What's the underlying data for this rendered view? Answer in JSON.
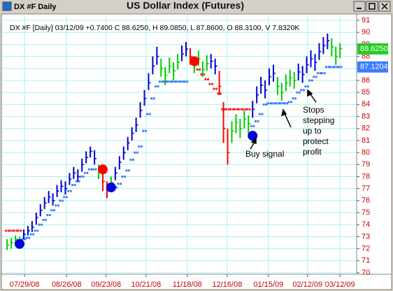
{
  "chart_data": {
    "type": "ohlc",
    "title": "US Dollar Index (Futures)",
    "window_label": "DX #F Daily",
    "info": "DX #F [Daily] 03/12/09 +0.7400 C 88.6250, H 89.0850, L 87.8600, O 88.3100, V 7.8320K",
    "xlim": [
      -1.2,
      84
    ],
    "ylim": [
      69.88,
      91.41
    ],
    "yticks": [
      70,
      71,
      72,
      73,
      74,
      75,
      76,
      77,
      78,
      79,
      80,
      81,
      82,
      83,
      84,
      85,
      86,
      87,
      88,
      89,
      90,
      91
    ],
    "xticks": [
      {
        "value": 4.2,
        "label": "07/29/08"
      },
      {
        "value": 14.3,
        "label": "08/26/08"
      },
      {
        "value": 23.8,
        "label": "09/23/08"
      },
      {
        "value": 33.4,
        "label": "10/21/08"
      },
      {
        "value": 43.3,
        "label": "11/18/08"
      },
      {
        "value": 52.9,
        "label": "12/16/08"
      },
      {
        "value": 62.8,
        "label": "01/15/09"
      },
      {
        "value": 72.2,
        "label": "02/12/09"
      },
      {
        "value": 80,
        "label": "03/12/09"
      }
    ],
    "grid": true,
    "high": [
      72.8,
      72.9,
      73.1,
      73.0,
      73.6,
      73.9,
      74.3,
      75.0,
      75.7,
      76.3,
      76.8,
      76.6,
      77.3,
      77.7,
      77.6,
      78.3,
      78.8,
      78.6,
      79.5,
      80.1,
      80.5,
      80.2,
      79.0,
      78.2,
      77.6,
      78.0,
      78.8,
      79.7,
      80.5,
      81.3,
      82.1,
      82.9,
      84.2,
      85.2,
      86.6,
      88.0,
      88.8,
      87.8,
      87.1,
      87.9,
      87.5,
      88.2,
      88.9,
      89.2,
      88.7,
      87.9,
      88.5,
      87.6,
      88.1,
      88.2,
      87.8,
      86.8,
      84.2,
      82.0,
      82.6,
      83.2,
      82.8,
      83.5,
      83.1,
      84.3,
      85.5,
      86.3,
      86.0,
      87.0,
      87.3,
      86.3,
      85.8,
      86.5,
      86.9,
      86.7,
      87.4,
      87.2,
      88.0,
      88.5,
      88.2,
      89.1,
      89.6,
      89.9,
      89.5,
      88.8,
      89.085
    ],
    "low": [
      71.9,
      72.0,
      72.3,
      72.1,
      72.8,
      73.1,
      73.4,
      74.0,
      74.7,
      75.3,
      75.8,
      75.6,
      76.3,
      76.7,
      76.5,
      77.3,
      77.8,
      77.6,
      78.4,
      79.1,
      79.6,
      79.0,
      77.8,
      76.8,
      76.2,
      76.9,
      77.7,
      78.6,
      79.4,
      80.2,
      81.0,
      81.7,
      82.9,
      83.9,
      85.2,
      86.5,
      87.3,
      86.3,
      85.6,
      86.6,
      86.0,
      86.9,
      87.6,
      88.0,
      87.3,
      86.6,
      87.2,
      86.3,
      86.8,
      87.0,
      86.5,
      84.8,
      80.8,
      79.0,
      80.8,
      81.6,
      81.2,
      82.0,
      81.6,
      82.9,
      84.1,
      84.9,
      84.5,
      85.6,
      85.9,
      84.8,
      84.3,
      85.1,
      85.5,
      85.3,
      86.0,
      85.8,
      86.6,
      87.1,
      86.8,
      87.7,
      88.2,
      88.6,
      88.0,
      87.3,
      87.86
    ],
    "close": [
      72.3,
      72.5,
      72.8,
      72.6,
      73.2,
      73.5,
      73.8,
      74.6,
      75.2,
      75.8,
      76.3,
      76.0,
      76.8,
      77.2,
      77.0,
      77.8,
      78.3,
      78.0,
      79.0,
      79.6,
      80.1,
      79.5,
      78.4,
      77.6,
      76.8,
      77.5,
      78.3,
      79.2,
      80.0,
      80.8,
      81.6,
      82.3,
      83.5,
      84.5,
      85.8,
      87.2,
      88.0,
      87.0,
      86.4,
      87.2,
      86.8,
      87.5,
      88.2,
      88.6,
      88.0,
      87.2,
      87.8,
      86.9,
      87.4,
      87.6,
      87.2,
      85.5,
      82.0,
      80.0,
      81.8,
      82.5,
      82.0,
      82.8,
      82.4,
      83.6,
      84.8,
      85.6,
      85.2,
      86.3,
      86.6,
      85.5,
      85.0,
      85.8,
      86.2,
      86.0,
      86.7,
      86.5,
      87.3,
      87.8,
      87.5,
      88.4,
      88.9,
      89.3,
      88.8,
      88.0,
      88.625
    ],
    "bar_colors": [
      "#00cc00",
      "#00cc00",
      "#00cc00",
      "#00cc00",
      "#0000cc",
      "#0000cc",
      "#0000cc",
      "#0000cc",
      "#0000cc",
      "#0000cc",
      "#0000cc",
      "#0000cc",
      "#0000cc",
      "#0000cc",
      "#0000cc",
      "#0000cc",
      "#0000cc",
      "#0000cc",
      "#0000cc",
      "#0000cc",
      "#0000cc",
      "#0000cc",
      "#00cc00",
      "#ff0000",
      "#ff0000",
      "#00cc00",
      "#0000cc",
      "#0000cc",
      "#0000cc",
      "#0000cc",
      "#0000cc",
      "#0000cc",
      "#0000cc",
      "#0000cc",
      "#0000cc",
      "#0000cc",
      "#0000cc",
      "#00cc00",
      "#00cc00",
      "#00cc00",
      "#00cc00",
      "#00cc00",
      "#0000cc",
      "#0000cc",
      "#ff0000",
      "#00cc00",
      "#00cc00",
      "#00cc00",
      "#00cc00",
      "#0000cc",
      "#0000cc",
      "#ff0000",
      "#ff0000",
      "#ff0000",
      "#00cc00",
      "#00cc00",
      "#00cc00",
      "#00cc00",
      "#00cc00",
      "#0000cc",
      "#0000cc",
      "#0000cc",
      "#0000cc",
      "#0000cc",
      "#0000cc",
      "#00cc00",
      "#00cc00",
      "#00cc00",
      "#00cc00",
      "#00cc00",
      "#0000cc",
      "#0000cc",
      "#0000cc",
      "#0000cc",
      "#0000cc",
      "#0000cc",
      "#0000cc",
      "#0000cc",
      "#00cc00",
      "#00cc00",
      "#00cc00"
    ],
    "stops": [
      {
        "color": "#3c7cff",
        "values": [
          null,
          null,
          null,
          null,
          72.8,
          72.9,
          73.2,
          73.5,
          74.0,
          74.4,
          74.8,
          75.2,
          75.6,
          76.0,
          76.3,
          76.8,
          77.3,
          77.6,
          78.0,
          78.3,
          78.6,
          78.6,
          null,
          null,
          null,
          null,
          77.1,
          77.4,
          78.0,
          78.5,
          79.4,
          80.0,
          80.5,
          81.8,
          83.2,
          84.5,
          85.5,
          85.9,
          85.9,
          85.9,
          85.9,
          85.9,
          85.9,
          85.9,
          null,
          null,
          null,
          null,
          null,
          null,
          null,
          null,
          null,
          null,
          null,
          null,
          null,
          null,
          null,
          82.2,
          82.6,
          83.2,
          84.0,
          84.1,
          84.1,
          84.1,
          84.1,
          84.1,
          84.2,
          84.5,
          85.0,
          85.2,
          85.5,
          86.0,
          86.3,
          86.6,
          86.6,
          87.1204,
          87.1204,
          87.1204,
          87.1204
        ]
      },
      {
        "color": "#ff2020",
        "values": [
          73.5,
          73.5,
          73.5,
          73.5,
          null,
          null,
          null,
          null,
          null,
          null,
          null,
          null,
          null,
          null,
          null,
          null,
          null,
          null,
          null,
          null,
          null,
          null,
          null,
          null,
          null,
          null,
          null,
          null,
          null,
          null,
          null,
          null,
          null,
          null,
          null,
          null,
          null,
          null,
          null,
          null,
          null,
          null,
          null,
          null,
          null,
          null,
          86.9,
          86.5,
          86.1,
          85.7,
          85.3,
          84.9,
          83.6,
          83.6,
          83.6,
          83.6,
          83.6,
          83.6,
          83.6,
          null,
          null,
          null,
          null,
          null,
          null,
          null,
          null,
          null,
          null,
          null,
          null,
          null,
          null,
          null,
          null,
          null,
          null,
          null,
          null,
          null,
          null
        ]
      }
    ],
    "signals": {
      "x": [
        3,
        23,
        25,
        45,
        59
      ],
      "values": [
        72.4,
        78.6,
        77.1,
        87.6,
        81.4
      ],
      "colors": [
        "#0000dd",
        "#ff0000",
        "#0000dd",
        "#ff0000",
        "#0000dd"
      ]
    },
    "price_labels": [
      {
        "value": 88.625,
        "label": "88.6250",
        "color": "#22cc22"
      },
      {
        "value": 87.1204,
        "label": "87.1204",
        "color": "#3c7cff"
      }
    ],
    "annotations": [
      {
        "text": "Buy signal"
      },
      {
        "lines": [
          "Stops",
          "stepping",
          "up to",
          "protect",
          "profit"
        ]
      }
    ]
  }
}
